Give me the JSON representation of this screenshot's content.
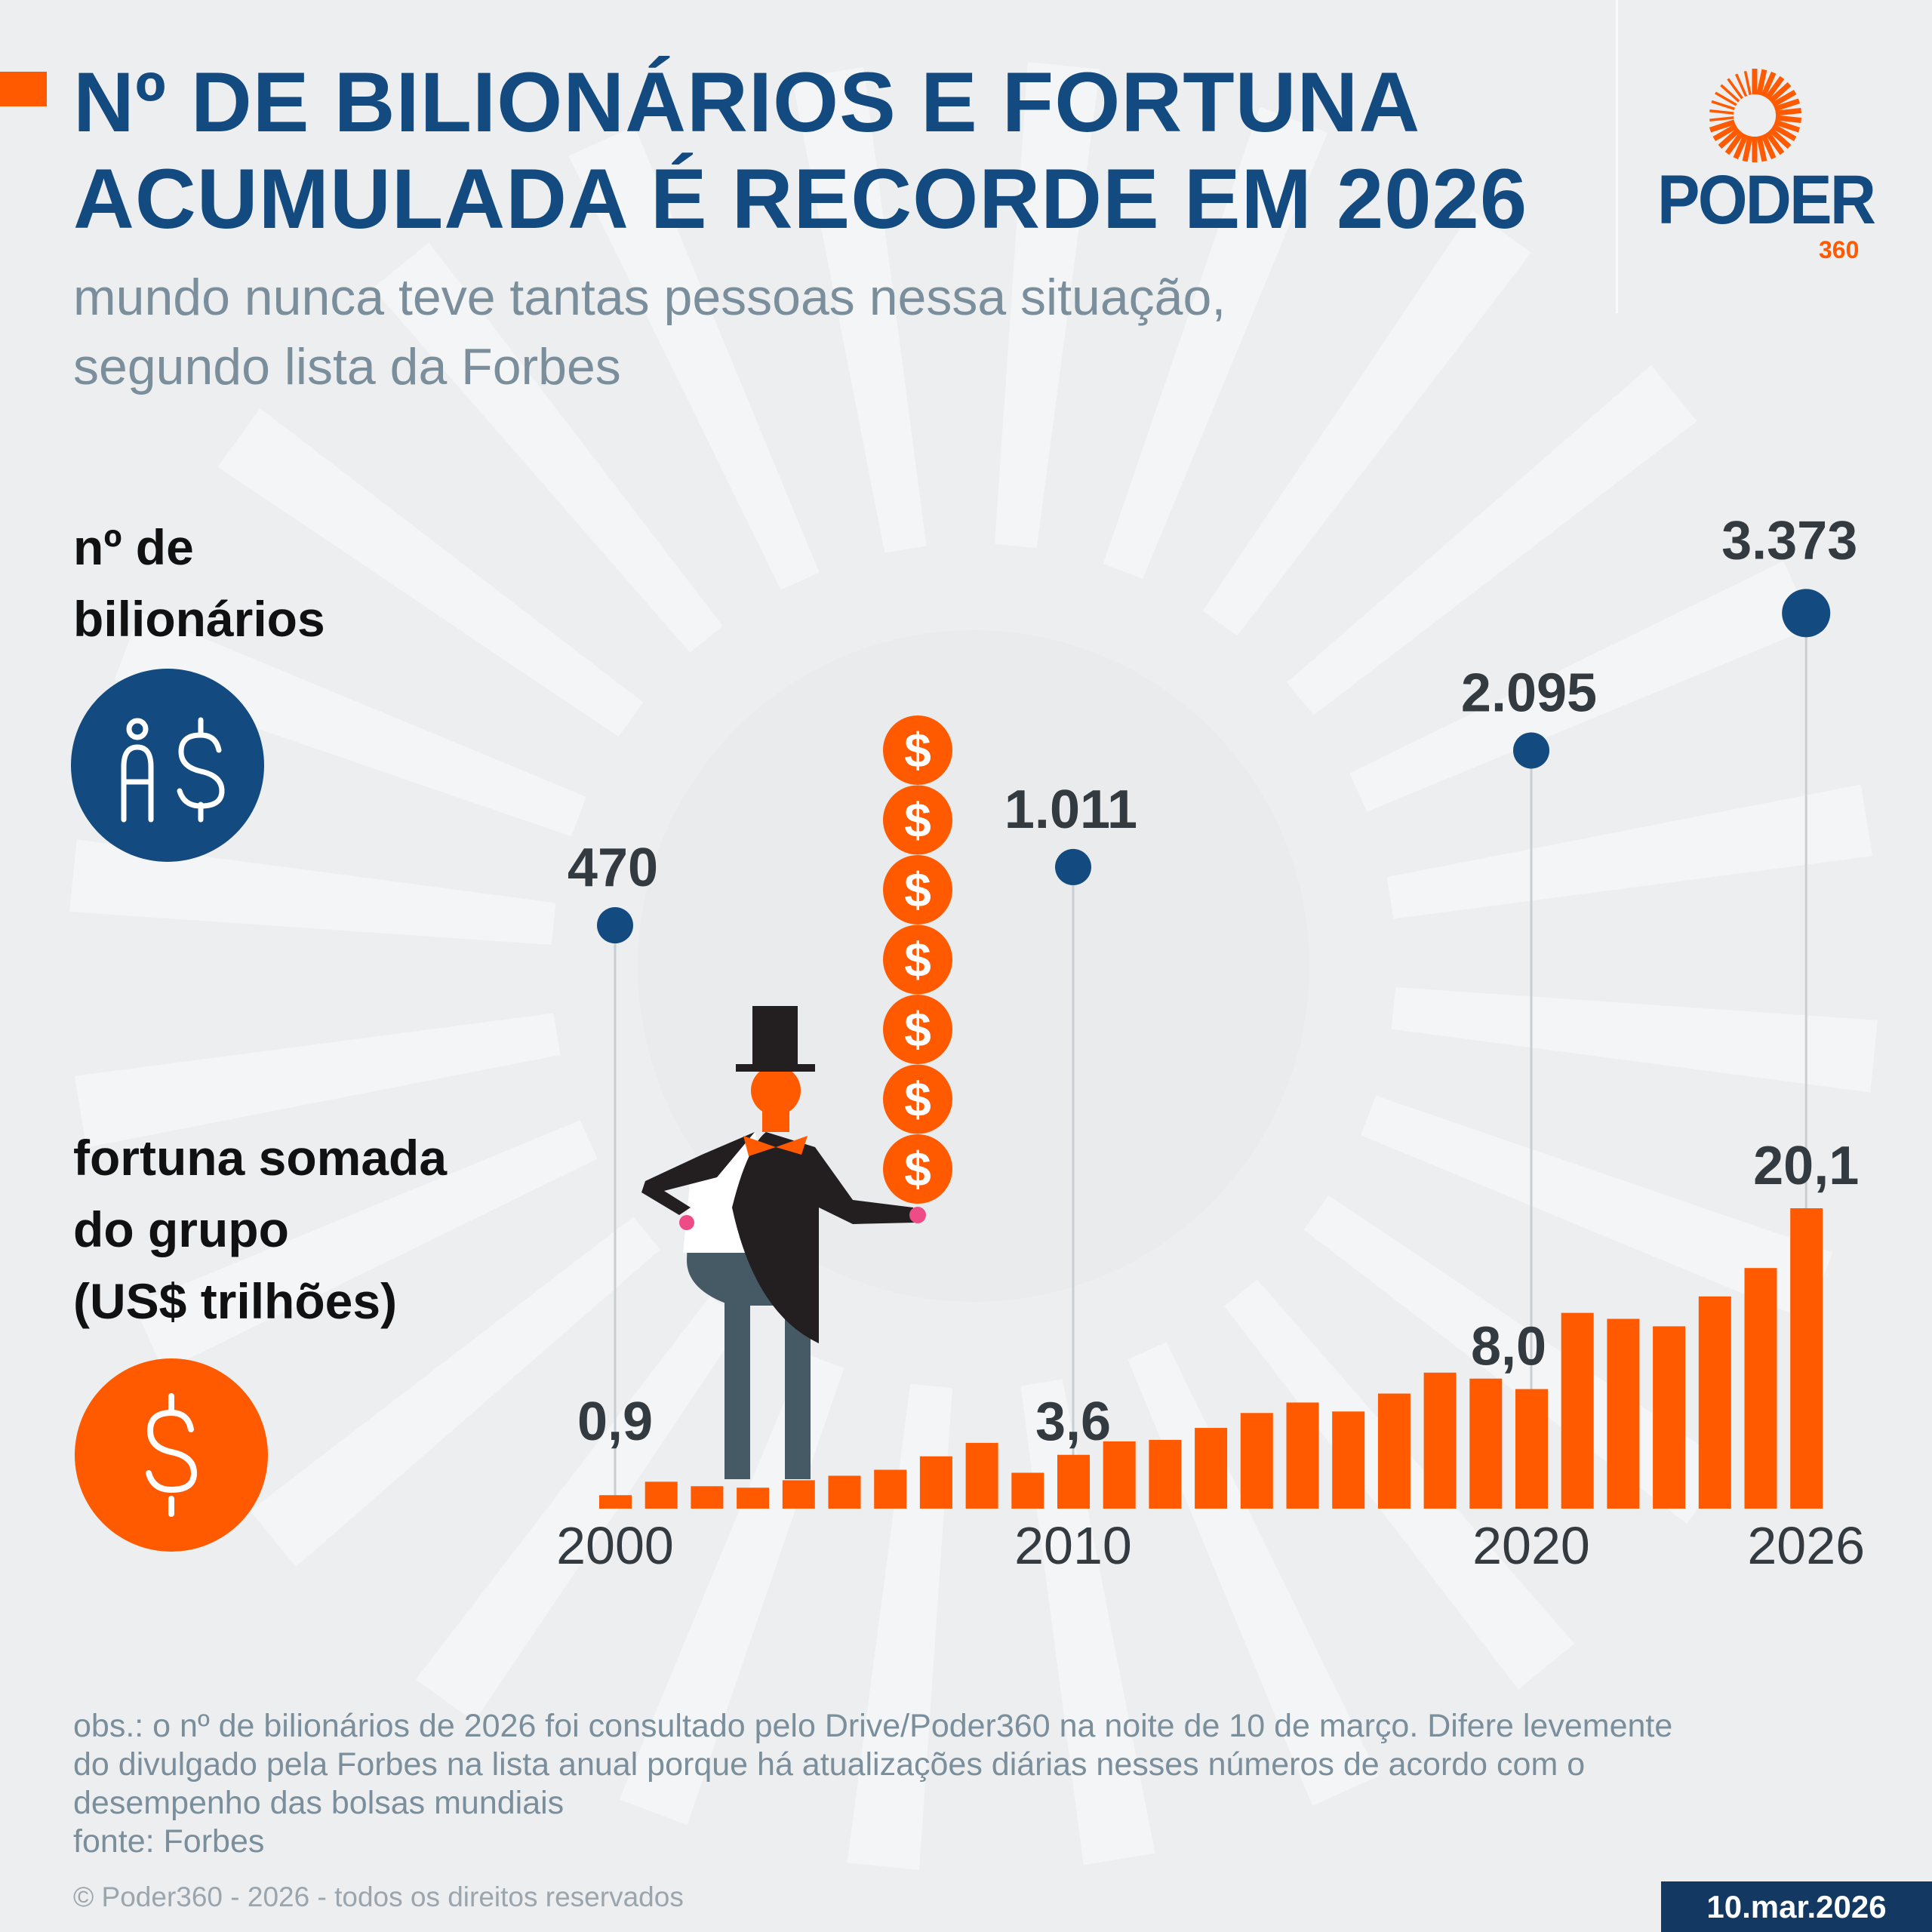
{
  "header": {
    "title_line1": "Nº DE BILIONÁRIOS E FORTUNA",
    "title_line2": "ACUMULADA É RECORDE EM 2026",
    "subtitle_line1": "mundo nunca teve tantas pessoas nessa situação,",
    "subtitle_line2": "segundo lista da Forbes"
  },
  "logo": {
    "name": "PODER",
    "suffix": "360"
  },
  "legend": {
    "billionaires_line1": "nº de",
    "billionaires_line2": "bilionários",
    "fortune_line1": "fortuna somada",
    "fortune_line2": "do grupo",
    "fortune_line3": "(US$ trilhões)"
  },
  "colors": {
    "navy": "#134a80",
    "orange": "#ff5a00",
    "background": "#edeef0"
  },
  "chart_data": {
    "type": "bar",
    "x": [
      2000,
      2001,
      2002,
      2003,
      2004,
      2005,
      2006,
      2007,
      2008,
      2009,
      2010,
      2011,
      2012,
      2013,
      2014,
      2015,
      2016,
      2017,
      2018,
      2019,
      2020,
      2021,
      2022,
      2023,
      2024,
      2025,
      2026
    ],
    "series": [
      {
        "name": "fortuna somada do grupo (US$ trilhões)",
        "type": "bar",
        "values": [
          0.9,
          1.8,
          1.5,
          1.4,
          1.9,
          2.2,
          2.6,
          3.5,
          4.4,
          2.4,
          3.6,
          4.5,
          4.6,
          5.4,
          6.4,
          7.1,
          6.5,
          7.7,
          9.1,
          8.7,
          8.0,
          13.1,
          12.7,
          12.2,
          14.2,
          16.1,
          20.1
        ],
        "data_labels": {
          "2000": "0,9",
          "2010": "3,6",
          "2020": "8,0",
          "2026": "20,1"
        }
      },
      {
        "name": "nº de bilionários",
        "type": "lollipop",
        "points": [
          {
            "x": 2000,
            "y": 470,
            "label": "470"
          },
          {
            "x": 2010,
            "y": 1011,
            "label": "1.011"
          },
          {
            "x": 2020,
            "y": 2095,
            "label": "2.095"
          },
          {
            "x": 2026,
            "y": 3373,
            "label": "3.373"
          }
        ]
      }
    ],
    "tick_labels": [
      "2000",
      "2010",
      "2020",
      "2026"
    ],
    "ylim": [
      0,
      20.1
    ]
  },
  "footer": {
    "obs_line1": "obs.: o nº de bilionários de 2026 foi consultado pelo Drive/Poder360 na noite de 10 de março. Difere levemente",
    "obs_line2": "do divulgado pela Forbes na lista anual porque há atualizações diárias nesses números de acordo com o",
    "obs_line3": "desempenho das bolsas mundiais",
    "source": "fonte: Forbes",
    "copyright": "© Poder360 - 2026 - todos os direitos reservados",
    "date": "10.mar.2026"
  }
}
